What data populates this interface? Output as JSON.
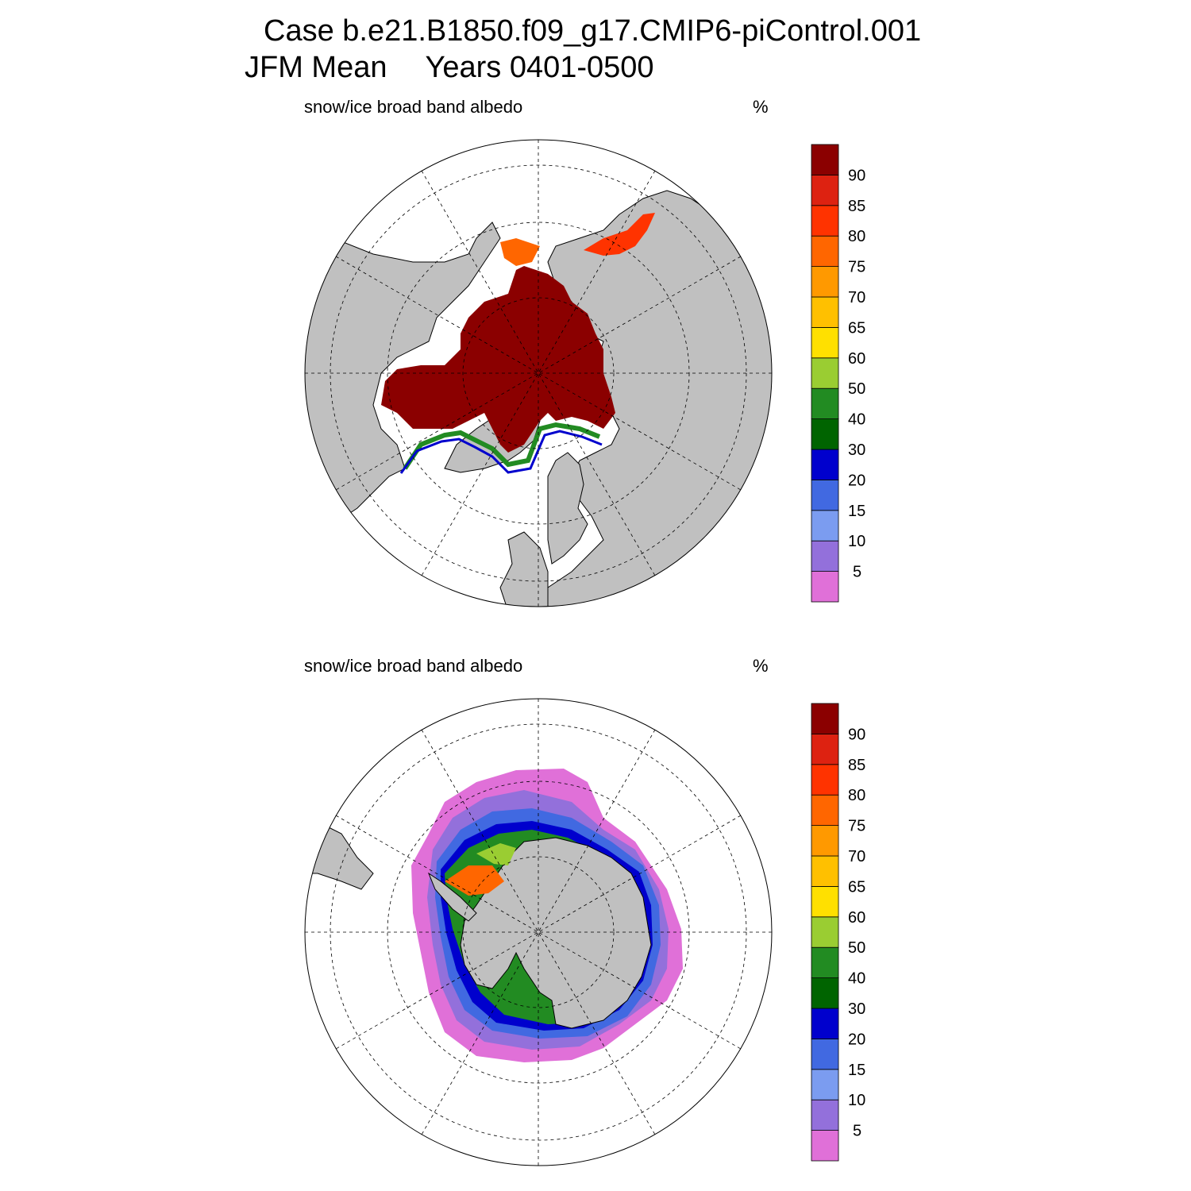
{
  "title": {
    "line1": "Case b.e21.B1850.f09_g17.CMIP6-piControl.001",
    "line2_left": "JFM Mean",
    "line2_right": "Years 0401-0500"
  },
  "panels": [
    {
      "id": "north",
      "label": "snow/ice broad band albedo",
      "units": "%",
      "hemisphere": "north"
    },
    {
      "id": "south",
      "label": "snow/ice broad band albedo",
      "units": "%",
      "hemisphere": "south"
    }
  ],
  "colorbar": {
    "levels": [
      "5",
      "10",
      "15",
      "20",
      "30",
      "40",
      "50",
      "60",
      "65",
      "70",
      "75",
      "80",
      "85",
      "90"
    ],
    "colors": [
      "#e070d8",
      "#9370db",
      "#7b9cf0",
      "#4169e1",
      "#0000cd",
      "#006400",
      "#228b22",
      "#9acd32",
      "#ffe000",
      "#ffc000",
      "#ff9900",
      "#ff6600",
      "#ff3300",
      "#dd2211",
      "#8b0000"
    ]
  },
  "colors": {
    "land": "#c0c0c0",
    "ocean": "#ffffff",
    "coast": "#000000"
  }
}
